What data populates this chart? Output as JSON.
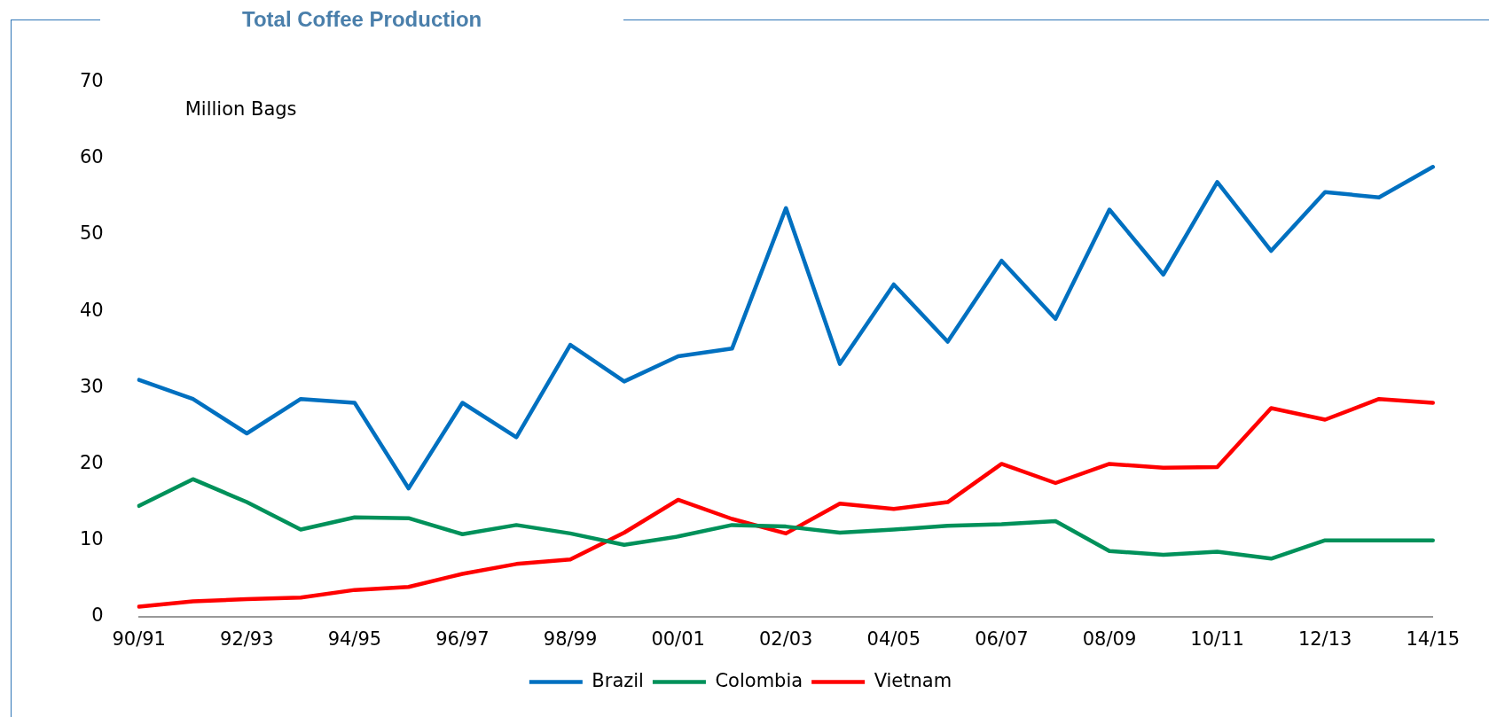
{
  "chart_data": {
    "type": "line",
    "title": "Total Coffee Production",
    "ylabel": "Million Bags",
    "categories": [
      "90/91",
      null,
      "92/93",
      null,
      "94/95",
      null,
      "96/97",
      null,
      "98/99",
      null,
      "00/01",
      null,
      "02/03",
      null,
      "04/05",
      null,
      "06/07",
      null,
      "08/09",
      null,
      "10/11",
      null,
      "12/13",
      null,
      "14/15"
    ],
    "series": [
      {
        "name": "Brazil",
        "color": "#0070c0",
        "values": [
          31,
          28.5,
          24,
          28.5,
          28,
          16.8,
          28,
          23.5,
          35.6,
          30.8,
          34.1,
          35.1,
          53.5,
          33.1,
          43.5,
          36,
          46.6,
          39,
          53.3,
          44.8,
          56.9,
          47.9,
          55.6,
          54.9,
          58.9
        ]
      },
      {
        "name": "Colombia",
        "color": "#00915a",
        "values": [
          14.5,
          18,
          15,
          11.4,
          13,
          12.9,
          10.8,
          12,
          10.9,
          9.4,
          10.5,
          12,
          11.8,
          11,
          11.4,
          11.9,
          12.1,
          12.5,
          8.6,
          8.1,
          8.5,
          7.6,
          10,
          10,
          10
        ]
      },
      {
        "name": "Vietnam",
        "color": "#ff0000",
        "values": [
          1.3,
          2,
          2.3,
          2.5,
          3.5,
          3.9,
          5.6,
          6.9,
          7.5,
          11,
          15.3,
          12.8,
          10.9,
          14.8,
          14.1,
          15,
          20,
          17.5,
          20,
          19.5,
          19.6,
          27.3,
          25.8,
          28.5,
          28
        ]
      }
    ],
    "ylim": [
      0,
      70
    ],
    "yticks": [
      0,
      10,
      20,
      30,
      40,
      50,
      60,
      70
    ],
    "grid": false,
    "legend": "bottom",
    "marker": "none",
    "line_style": "solid"
  }
}
